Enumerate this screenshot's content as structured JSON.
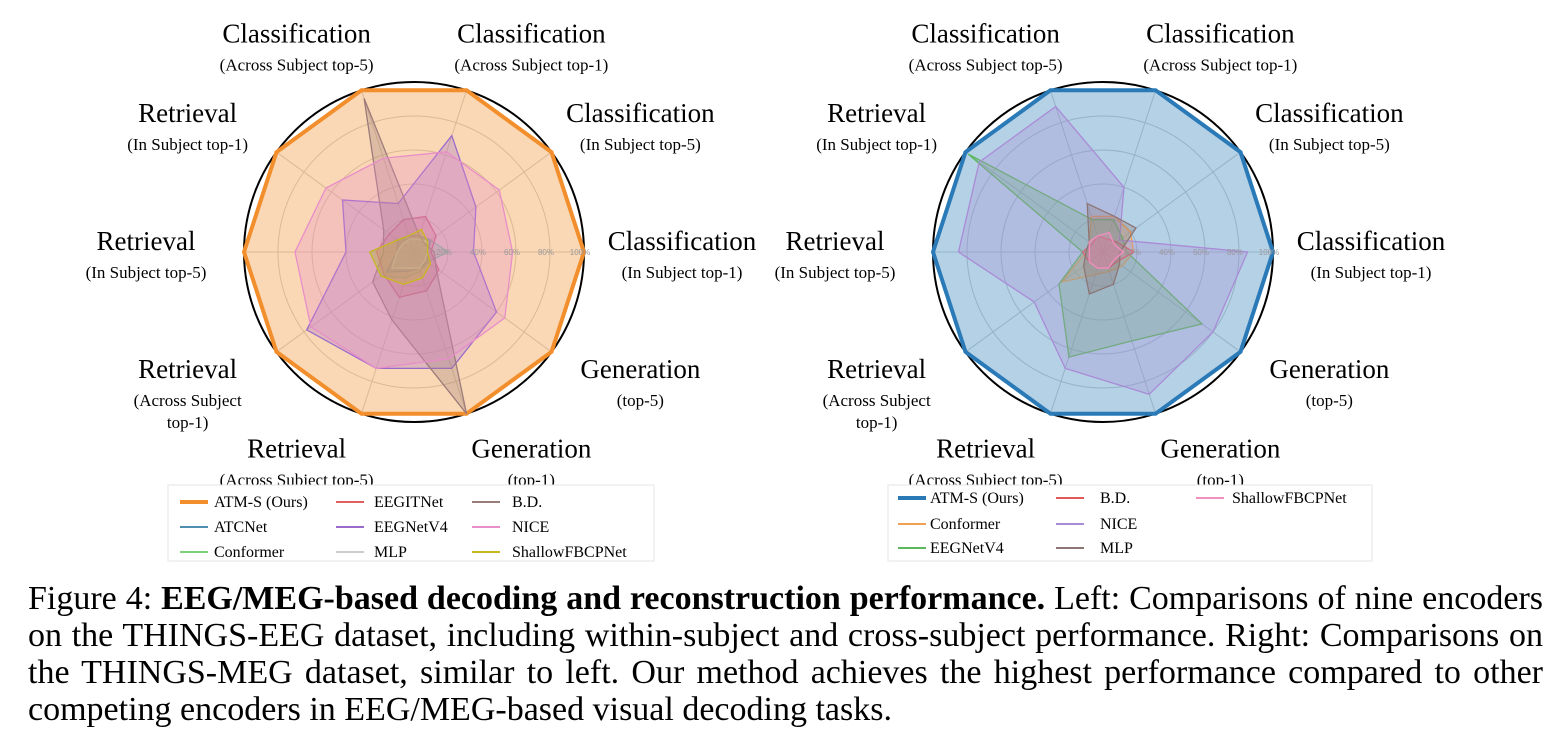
{
  "axis_labels": [
    {
      "main": "Classification",
      "sub": [
        "(Across Subject top-1)"
      ]
    },
    {
      "main": "Classification",
      "sub": [
        "(In Subject top-5)"
      ]
    },
    {
      "main": "Classification",
      "sub": [
        "(In Subject top-1)"
      ]
    },
    {
      "main": "Generation",
      "sub": [
        "(top-5)"
      ]
    },
    {
      "main": "Generation",
      "sub": [
        "(top-1)"
      ]
    },
    {
      "main": "Retrieval",
      "sub": [
        "(Across Subject top-5)"
      ]
    },
    {
      "main": "Retrieval",
      "sub": [
        "(Across Subject",
        "top-1)"
      ]
    },
    {
      "main": "Retrieval",
      "sub": [
        "(In Subject top-5)"
      ]
    },
    {
      "main": "Retrieval",
      "sub": [
        "(In Subject top-1)"
      ]
    },
    {
      "main": "Classification",
      "sub": [
        "(Across Subject top-5)"
      ]
    }
  ],
  "tick_labels": [
    "20%",
    "40%",
    "60%",
    "80%",
    "100%"
  ],
  "chart_data": [
    {
      "type": "radar",
      "dataset": "left",
      "rlim": [
        0,
        100
      ],
      "grid": true,
      "legend_position": "bottom",
      "series": [
        {
          "name": "ATM-S (Ours)",
          "color": "#f28e2b",
          "values": [
            100,
            100,
            100,
            100,
            100,
            100,
            100,
            100,
            100,
            100
          ]
        },
        {
          "name": "ATCNet",
          "color": "#4e8fb0",
          "values": [
            10,
            12,
            8,
            10,
            10,
            12,
            20,
            10,
            12,
            10
          ]
        },
        {
          "name": "Conformer",
          "color": "#7ccf7c",
          "values": [
            8,
            12,
            20,
            10,
            12,
            16,
            24,
            26,
            12,
            8
          ]
        },
        {
          "name": "EEGITNet",
          "color": "#e06060",
          "values": [
            22,
            16,
            10,
            18,
            24,
            28,
            22,
            22,
            18,
            20
          ]
        },
        {
          "name": "EEGNetV4",
          "color": "#9b6bcc",
          "values": [
            72,
            45,
            35,
            60,
            72,
            72,
            78,
            40,
            52,
            30
          ]
        },
        {
          "name": "MLP",
          "color": "#cccccc",
          "values": [
            8,
            10,
            8,
            8,
            10,
            10,
            16,
            10,
            8,
            8
          ]
        },
        {
          "name": "B.D.",
          "color": "#9c7b7b",
          "values": [
            10,
            8,
            12,
            16,
            100,
            42,
            30,
            18,
            22,
            95
          ]
        },
        {
          "name": "NICE",
          "color": "#e88ec9",
          "values": [
            62,
            62,
            58,
            66,
            66,
            72,
            75,
            70,
            64,
            58
          ]
        },
        {
          "name": "ShallowFBCPNet",
          "color": "#c8b820",
          "values": [
            14,
            10,
            8,
            12,
            16,
            20,
            24,
            26,
            12,
            10
          ]
        }
      ]
    },
    {
      "type": "radar",
      "dataset": "right",
      "rlim": [
        0,
        100
      ],
      "grid": true,
      "legend_position": "bottom",
      "series": [
        {
          "name": "ATM-S (Ours)",
          "color": "#2a7ab8",
          "values": [
            100,
            100,
            100,
            100,
            100,
            100,
            100,
            100,
            100,
            100
          ]
        },
        {
          "name": "Conformer",
          "color": "#f0a050",
          "values": [
            22,
            20,
            18,
            14,
            12,
            14,
            30,
            10,
            10,
            22
          ]
        },
        {
          "name": "EEGNetV4",
          "color": "#5cb85c",
          "values": [
            20,
            14,
            14,
            72,
            55,
            65,
            32,
            12,
            98,
            20
          ]
        },
        {
          "name": "B.D.",
          "color": "#e05a5a",
          "values": [
            8,
            10,
            18,
            10,
            10,
            10,
            10,
            12,
            8,
            10
          ]
        },
        {
          "name": "NICE",
          "color": "#a98bd6",
          "values": [
            40,
            12,
            85,
            80,
            88,
            72,
            50,
            85,
            90,
            90
          ]
        },
        {
          "name": "MLP",
          "color": "#8c7575",
          "values": [
            22,
            24,
            10,
            12,
            20,
            26,
            14,
            10,
            10,
            30
          ]
        },
        {
          "name": "ShallowFBCPNet",
          "color": "#f28fc0",
          "values": [
            12,
            8,
            12,
            8,
            10,
            10,
            10,
            8,
            10,
            10
          ]
        }
      ]
    }
  ],
  "caption": {
    "label": "Figure 4: ",
    "bold": "EEG/MEG-based decoding and reconstruction performance.",
    "text": " Left: Comparisons of nine encoders on the THINGS-EEG dataset, including within-subject and cross-subject performance. Right: Comparisons on the THINGS-MEG dataset, similar to left. Our method achieves the highest performance compared to other competing encoders in EEG/MEG-based visual decoding tasks."
  }
}
